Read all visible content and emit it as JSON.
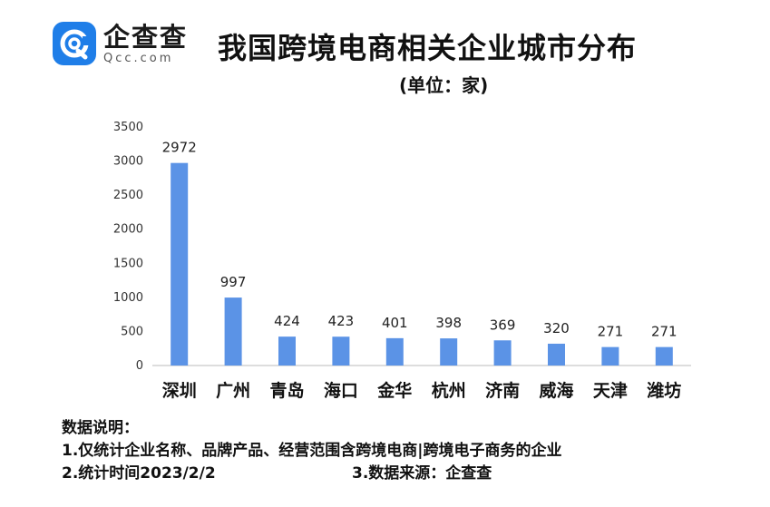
{
  "logo": {
    "name_cn": "企查查",
    "name_en": "Qcc.com",
    "brand_color": "#1f7ee8"
  },
  "header": {
    "title": "我国跨境电商相关企业城市分布",
    "subtitle": "(单位：家)"
  },
  "chart_data": {
    "type": "bar",
    "title": "我国跨境电商相关企业城市分布",
    "subtitle": "(单位：家)",
    "xlabel": "",
    "ylabel": "",
    "categories": [
      "深圳",
      "广州",
      "青岛",
      "海口",
      "金华",
      "杭州",
      "济南",
      "威海",
      "天津",
      "潍坊"
    ],
    "values": [
      2972,
      997,
      424,
      423,
      401,
      398,
      369,
      320,
      271,
      271
    ],
    "ylim": [
      0,
      3500
    ],
    "yticks": [
      0,
      500,
      1000,
      1500,
      2000,
      2500,
      3000,
      3500
    ],
    "grid": false,
    "bar_color": "#5b93e6",
    "axis_color": "#bbbbbb"
  },
  "notes": {
    "heading": "数据说明：",
    "line1": "1.仅统计企业名称、品牌产品、经营范围含跨境电商|跨境电子商务的企业",
    "line2": "2.统计时间2023/2/2",
    "line3": "3.数据来源：企查查"
  }
}
